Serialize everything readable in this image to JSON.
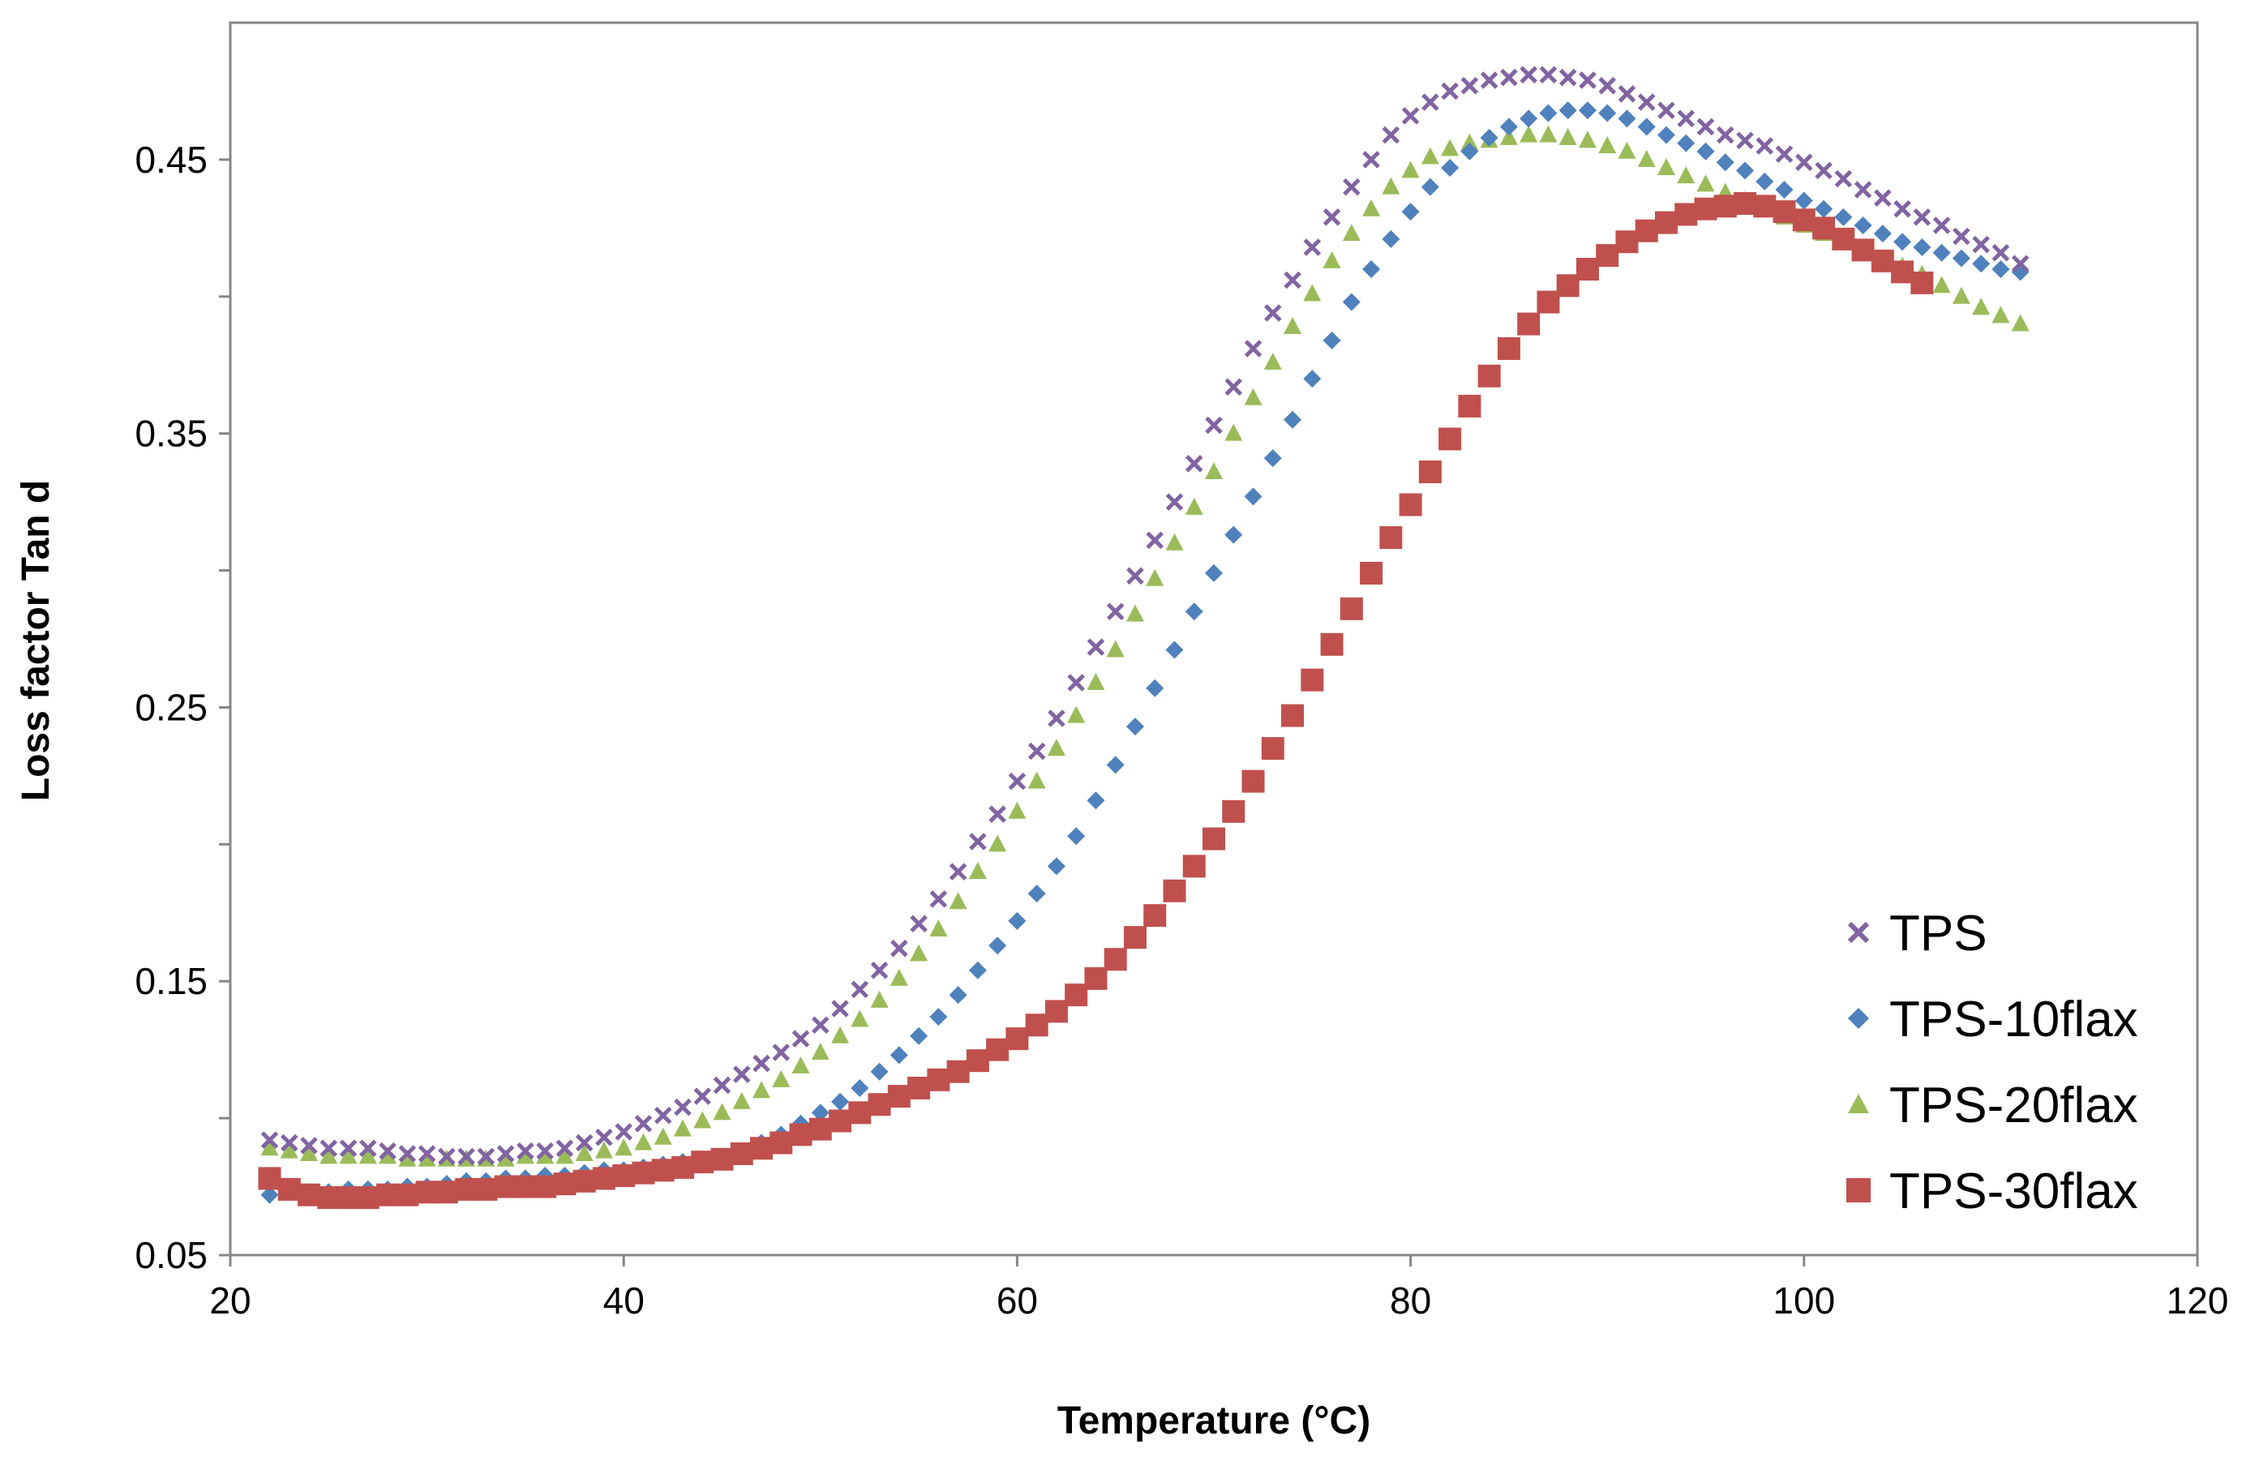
{
  "chart_data": {
    "type": "scatter",
    "title": "",
    "xlabel": "Temperature (°C)",
    "ylabel": "Loss factor Tan d",
    "xlim": [
      20,
      120
    ],
    "ylim": [
      0.05,
      0.5
    ],
    "xticks": [
      20,
      40,
      60,
      80,
      100,
      120
    ],
    "yticks": [
      0.05,
      0.15,
      0.25,
      0.35,
      0.45
    ],
    "x_tick_labels": [
      "20",
      "40",
      "60",
      "80",
      "100",
      "120"
    ],
    "y_tick_labels": [
      "0.05",
      "0.15",
      "0.25",
      "0.35",
      "0.45"
    ],
    "grid": false,
    "legend_position": "bottom-right",
    "series": [
      {
        "name": "TPS",
        "marker": "x",
        "color": "#8064A2",
        "x": [
          22,
          23,
          24,
          25,
          26,
          27,
          28,
          29,
          30,
          31,
          32,
          33,
          34,
          35,
          36,
          37,
          38,
          39,
          40,
          41,
          42,
          43,
          44,
          45,
          46,
          47,
          48,
          49,
          50,
          51,
          52,
          53,
          54,
          55,
          56,
          57,
          58,
          59,
          60,
          61,
          62,
          63,
          64,
          65,
          66,
          67,
          68,
          69,
          70,
          71,
          72,
          73,
          74,
          75,
          76,
          77,
          78,
          79,
          80,
          81,
          82,
          83,
          84,
          85,
          86,
          87,
          88,
          89,
          90,
          91,
          92,
          93,
          94,
          95,
          96,
          97,
          98,
          99,
          100,
          101,
          102,
          103,
          104,
          105,
          106,
          107,
          108,
          109,
          110,
          111
        ],
        "y": [
          0.092,
          0.091,
          0.09,
          0.089,
          0.089,
          0.089,
          0.088,
          0.087,
          0.087,
          0.086,
          0.086,
          0.086,
          0.087,
          0.088,
          0.088,
          0.089,
          0.091,
          0.093,
          0.095,
          0.098,
          0.101,
          0.104,
          0.108,
          0.112,
          0.116,
          0.12,
          0.124,
          0.129,
          0.134,
          0.14,
          0.147,
          0.154,
          0.162,
          0.171,
          0.18,
          0.19,
          0.201,
          0.211,
          0.223,
          0.234,
          0.246,
          0.259,
          0.272,
          0.285,
          0.298,
          0.311,
          0.325,
          0.339,
          0.353,
          0.367,
          0.381,
          0.394,
          0.406,
          0.418,
          0.429,
          0.44,
          0.45,
          0.459,
          0.466,
          0.471,
          0.475,
          0.477,
          0.479,
          0.48,
          0.481,
          0.481,
          0.48,
          0.479,
          0.477,
          0.474,
          0.471,
          0.468,
          0.465,
          0.462,
          0.459,
          0.457,
          0.455,
          0.452,
          0.449,
          0.446,
          0.443,
          0.439,
          0.436,
          0.432,
          0.429,
          0.426,
          0.422,
          0.419,
          0.416,
          0.412
        ]
      },
      {
        "name": "TPS-10flax",
        "marker": "diamond",
        "color": "#4F81BD",
        "x": [
          22,
          23,
          24,
          25,
          26,
          27,
          28,
          29,
          30,
          31,
          32,
          33,
          34,
          35,
          36,
          37,
          38,
          39,
          40,
          41,
          42,
          43,
          44,
          45,
          46,
          47,
          48,
          49,
          50,
          51,
          52,
          53,
          54,
          55,
          56,
          57,
          58,
          59,
          60,
          61,
          62,
          63,
          64,
          65,
          66,
          67,
          68,
          69,
          70,
          71,
          72,
          73,
          74,
          75,
          76,
          77,
          78,
          79,
          80,
          81,
          82,
          83,
          84,
          85,
          86,
          87,
          88,
          89,
          90,
          91,
          92,
          93,
          94,
          95,
          96,
          97,
          98,
          99,
          100,
          101,
          102,
          103,
          104,
          105,
          106,
          107,
          108,
          109,
          110,
          111
        ],
        "y": [
          0.072,
          0.073,
          0.073,
          0.073,
          0.074,
          0.074,
          0.074,
          0.075,
          0.075,
          0.076,
          0.077,
          0.077,
          0.078,
          0.078,
          0.079,
          0.079,
          0.08,
          0.081,
          0.081,
          0.082,
          0.083,
          0.084,
          0.085,
          0.086,
          0.088,
          0.091,
          0.094,
          0.098,
          0.102,
          0.106,
          0.111,
          0.117,
          0.123,
          0.13,
          0.137,
          0.145,
          0.154,
          0.163,
          0.172,
          0.182,
          0.192,
          0.203,
          0.216,
          0.229,
          0.243,
          0.257,
          0.271,
          0.285,
          0.299,
          0.313,
          0.327,
          0.341,
          0.355,
          0.37,
          0.384,
          0.398,
          0.41,
          0.421,
          0.431,
          0.44,
          0.447,
          0.453,
          0.458,
          0.462,
          0.465,
          0.467,
          0.468,
          0.468,
          0.467,
          0.465,
          0.462,
          0.459,
          0.456,
          0.453,
          0.449,
          0.446,
          0.442,
          0.439,
          0.435,
          0.432,
          0.429,
          0.426,
          0.423,
          0.42,
          0.418,
          0.416,
          0.414,
          0.412,
          0.41,
          0.409
        ]
      },
      {
        "name": "TPS-20flax",
        "marker": "triangle",
        "color": "#9BBB59",
        "x": [
          22,
          23,
          24,
          25,
          26,
          27,
          28,
          29,
          30,
          31,
          32,
          33,
          34,
          35,
          36,
          37,
          38,
          39,
          40,
          41,
          42,
          43,
          44,
          45,
          46,
          47,
          48,
          49,
          50,
          51,
          52,
          53,
          54,
          55,
          56,
          57,
          58,
          59,
          60,
          61,
          62,
          63,
          64,
          65,
          66,
          67,
          68,
          69,
          70,
          71,
          72,
          73,
          74,
          75,
          76,
          77,
          78,
          79,
          80,
          81,
          82,
          83,
          84,
          85,
          86,
          87,
          88,
          89,
          90,
          91,
          92,
          93,
          94,
          95,
          96,
          97,
          98,
          99,
          100,
          101,
          102,
          103,
          104,
          105,
          106,
          107,
          108,
          109,
          110,
          111
        ],
        "y": [
          0.089,
          0.088,
          0.087,
          0.086,
          0.086,
          0.086,
          0.086,
          0.085,
          0.085,
          0.085,
          0.085,
          0.085,
          0.085,
          0.086,
          0.086,
          0.086,
          0.087,
          0.088,
          0.089,
          0.091,
          0.093,
          0.096,
          0.099,
          0.102,
          0.106,
          0.11,
          0.114,
          0.119,
          0.124,
          0.13,
          0.136,
          0.143,
          0.151,
          0.16,
          0.169,
          0.179,
          0.19,
          0.2,
          0.212,
          0.223,
          0.235,
          0.247,
          0.259,
          0.271,
          0.284,
          0.297,
          0.31,
          0.323,
          0.336,
          0.35,
          0.363,
          0.376,
          0.389,
          0.401,
          0.413,
          0.423,
          0.432,
          0.44,
          0.446,
          0.451,
          0.454,
          0.456,
          0.457,
          0.458,
          0.459,
          0.459,
          0.458,
          0.457,
          0.455,
          0.453,
          0.45,
          0.447,
          0.444,
          0.441,
          0.438,
          0.435,
          0.432,
          0.429,
          0.426,
          0.423,
          0.42,
          0.417,
          0.414,
          0.411,
          0.408,
          0.404,
          0.4,
          0.396,
          0.393,
          0.39
        ]
      },
      {
        "name": "TPS-30flax",
        "marker": "square",
        "color": "#C0504D",
        "x": [
          22,
          23,
          24,
          25,
          26,
          27,
          28,
          29,
          30,
          31,
          32,
          33,
          34,
          35,
          36,
          37,
          38,
          39,
          40,
          41,
          42,
          43,
          44,
          45,
          46,
          47,
          48,
          49,
          50,
          51,
          52,
          53,
          54,
          55,
          56,
          57,
          58,
          59,
          60,
          61,
          62,
          63,
          64,
          65,
          66,
          67,
          68,
          69,
          70,
          71,
          72,
          73,
          74,
          75,
          76,
          77,
          78,
          79,
          80,
          81,
          82,
          83,
          84,
          85,
          86,
          87,
          88,
          89,
          90,
          91,
          92,
          93,
          94,
          95,
          96,
          97,
          98,
          99,
          100,
          101,
          102,
          103,
          104,
          105,
          106
        ],
        "y": [
          0.078,
          0.074,
          0.072,
          0.071,
          0.071,
          0.071,
          0.072,
          0.072,
          0.073,
          0.073,
          0.074,
          0.074,
          0.075,
          0.075,
          0.075,
          0.076,
          0.077,
          0.078,
          0.079,
          0.08,
          0.081,
          0.082,
          0.084,
          0.085,
          0.087,
          0.089,
          0.091,
          0.094,
          0.096,
          0.099,
          0.102,
          0.105,
          0.108,
          0.111,
          0.114,
          0.117,
          0.121,
          0.125,
          0.129,
          0.134,
          0.139,
          0.145,
          0.151,
          0.158,
          0.166,
          0.174,
          0.183,
          0.192,
          0.202,
          0.212,
          0.223,
          0.235,
          0.247,
          0.26,
          0.273,
          0.286,
          0.299,
          0.312,
          0.324,
          0.336,
          0.348,
          0.36,
          0.371,
          0.381,
          0.39,
          0.398,
          0.404,
          0.41,
          0.415,
          0.42,
          0.424,
          0.427,
          0.43,
          0.432,
          0.433,
          0.434,
          0.433,
          0.431,
          0.428,
          0.425,
          0.421,
          0.417,
          0.413,
          0.409,
          0.405
        ]
      }
    ]
  }
}
